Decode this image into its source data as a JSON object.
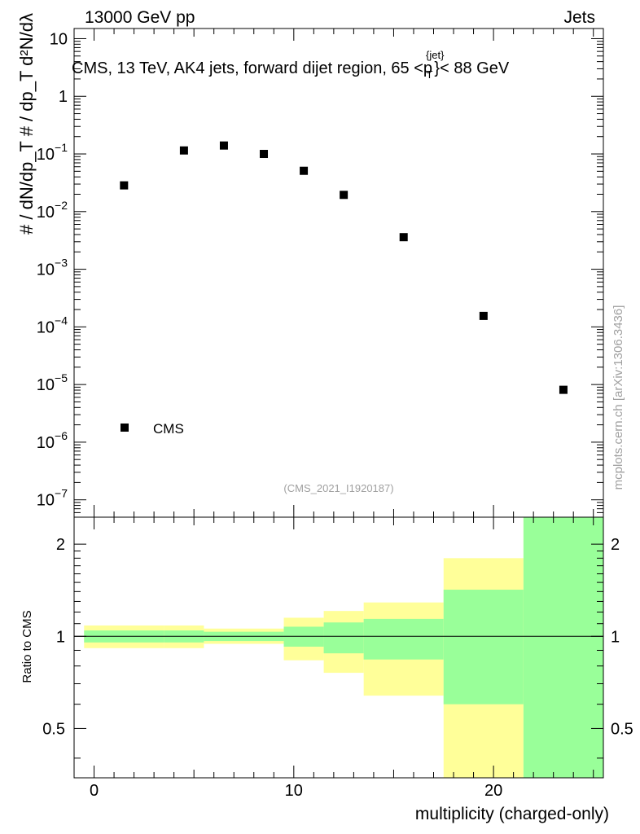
{
  "header": {
    "left": "13000 GeV pp",
    "right": "Jets"
  },
  "watermark": "mcplots.cern.ch [arXiv:1306.3436]",
  "analysis_id": "(CMS_2021_I1920187)",
  "chart_data": [
    {
      "type": "scatter",
      "panel": "main",
      "title": "CMS, 13 TeV, AK4 jets, forward dijet region, 65 <p",
      "title_sup": "{jet}",
      "title_sub": "T",
      "title_tail": "}< 88 GeV",
      "ylabel": "# / dN/dp_T # / dp_T d²N/dλ",
      "yscale": "log",
      "xlim": [
        -1,
        25.5
      ],
      "ylim": [
        5e-08,
        15
      ],
      "ytick_labels": [
        {
          "value": 10,
          "base": "10",
          "exp": ""
        },
        {
          "value": 1,
          "base": "1",
          "exp": ""
        },
        {
          "value": 0.1,
          "base": "10",
          "exp": "−1"
        },
        {
          "value": 0.01,
          "base": "10",
          "exp": "−2"
        },
        {
          "value": 0.001,
          "base": "10",
          "exp": "−3"
        },
        {
          "value": 0.0001,
          "base": "10",
          "exp": "−4"
        },
        {
          "value": 1e-05,
          "base": "10",
          "exp": "−5"
        },
        {
          "value": 1e-06,
          "base": "10",
          "exp": "−6"
        },
        {
          "value": 1e-07,
          "base": "10",
          "exp": "−7"
        }
      ],
      "legend": {
        "label": "CMS",
        "position": "bottom-left"
      },
      "series": [
        {
          "name": "CMS",
          "x": [
            1.5,
            4.5,
            6.5,
            8.5,
            10.5,
            12.5,
            15.5,
            19.5,
            23.5
          ],
          "y": [
            0.0285,
            0.115,
            0.14,
            0.1,
            0.051,
            0.0195,
            0.0036,
            0.000155,
            8.1e-06
          ]
        }
      ]
    },
    {
      "type": "area",
      "panel": "ratio",
      "ylabel": "Ratio to CMS",
      "xlabel": "multiplicity (charged-only)",
      "yscale": "log",
      "xlim": [
        -1,
        25.5
      ],
      "ylim": [
        0.345,
        2.45
      ],
      "xticks": [
        0,
        10,
        20
      ],
      "xtick_labels": [
        "0",
        "10",
        "20"
      ],
      "yticks": [
        0.5,
        1,
        2
      ],
      "ytick_labels": [
        "0.5",
        "1",
        "2"
      ],
      "reference_line": 1,
      "bins": [
        {
          "x_low": -0.5,
          "x_high": 3.5,
          "inner": [
            0.955,
            1.045
          ],
          "outer": [
            0.915,
            1.085
          ]
        },
        {
          "x_low": 3.5,
          "x_high": 5.5,
          "inner": [
            0.955,
            1.045
          ],
          "outer": [
            0.915,
            1.085
          ]
        },
        {
          "x_low": 5.5,
          "x_high": 7.5,
          "inner": [
            0.965,
            1.035
          ],
          "outer": [
            0.945,
            1.06
          ]
        },
        {
          "x_low": 7.5,
          "x_high": 9.5,
          "inner": [
            0.965,
            1.035
          ],
          "outer": [
            0.945,
            1.06
          ]
        },
        {
          "x_low": 9.5,
          "x_high": 11.5,
          "inner": [
            0.925,
            1.075
          ],
          "outer": [
            0.835,
            1.15
          ]
        },
        {
          "x_low": 11.5,
          "x_high": 13.5,
          "inner": [
            0.88,
            1.11
          ],
          "outer": [
            0.76,
            1.21
          ]
        },
        {
          "x_low": 13.5,
          "x_high": 17.5,
          "inner": [
            0.84,
            1.14
          ],
          "outer": [
            0.64,
            1.29
          ]
        },
        {
          "x_low": 17.5,
          "x_high": 21.5,
          "inner": [
            0.6,
            1.42
          ],
          "outer": [
            0.345,
            1.8
          ]
        },
        {
          "x_low": 21.5,
          "x_high": 25.5,
          "inner": [
            0.345,
            2.45
          ],
          "outer": [
            0.345,
            2.45
          ]
        }
      ],
      "colors": {
        "inner": "#99ff99",
        "outer": "#ffff99"
      }
    }
  ]
}
